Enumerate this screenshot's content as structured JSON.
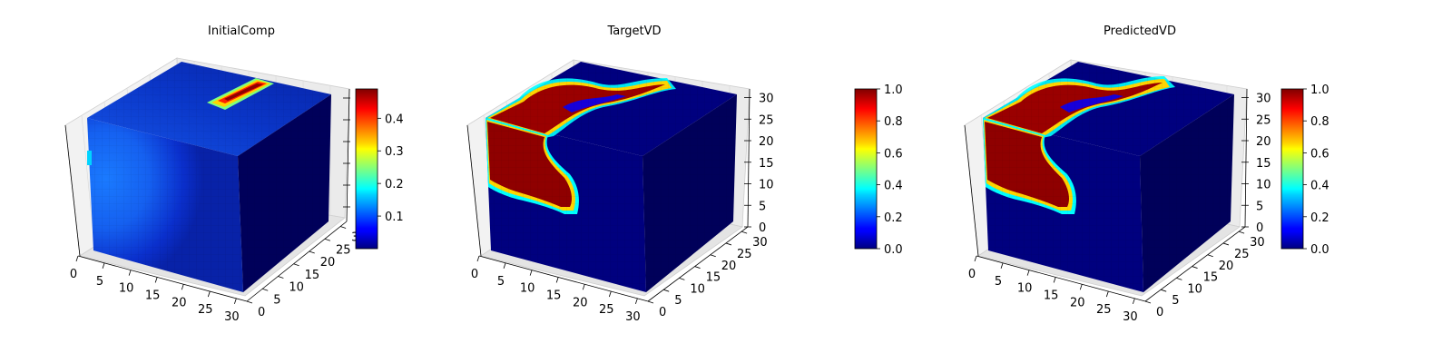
{
  "figure": {
    "panels": [
      {
        "title": "InitialComp"
      },
      {
        "title": "TargetVD"
      },
      {
        "title": "PredictedVD"
      }
    ]
  },
  "chart_data": [
    {
      "type": "voxel-3d",
      "title": "InitialComp",
      "colormap": "jet",
      "axes": {
        "x": {
          "ticks": [
            0,
            5,
            10,
            15,
            20,
            25,
            30
          ],
          "range": [
            0,
            32
          ]
        },
        "y": {
          "ticks": [
            0,
            5,
            10,
            15,
            20,
            25,
            30
          ],
          "range": [
            0,
            32
          ]
        },
        "z": {
          "ticks": [],
          "range": [
            0,
            32
          ]
        }
      },
      "grid": true,
      "colorbar": {
        "range": [
          0.0,
          0.49
        ],
        "ticks": [
          0.1,
          0.2,
          0.3,
          0.4
        ],
        "tick_labels": [
          "0.1",
          "0.2",
          "0.3",
          "0.4"
        ]
      }
    },
    {
      "type": "voxel-3d",
      "title": "TargetVD",
      "colormap": "jet",
      "axes": {
        "x": {
          "ticks": [
            0,
            5,
            10,
            15,
            20,
            25,
            30
          ],
          "range": [
            0,
            32
          ]
        },
        "y": {
          "ticks": [
            0,
            5,
            10,
            15,
            20,
            25,
            30
          ],
          "range": [
            0,
            32
          ]
        },
        "z": {
          "ticks": [
            0,
            5,
            10,
            15,
            20,
            25,
            30
          ],
          "range": [
            0,
            32
          ]
        }
      },
      "grid": true,
      "colorbar": {
        "range": [
          0.0,
          1.0
        ],
        "ticks": [
          0.0,
          0.2,
          0.4,
          0.6,
          0.8,
          1.0
        ],
        "tick_labels": [
          "0.0",
          "0.2",
          "0.4",
          "0.6",
          "0.8",
          "1.0"
        ]
      }
    },
    {
      "type": "voxel-3d",
      "title": "PredictedVD",
      "colormap": "jet",
      "axes": {
        "x": {
          "ticks": [
            0,
            5,
            10,
            15,
            20,
            25,
            30
          ],
          "range": [
            0,
            32
          ]
        },
        "y": {
          "ticks": [
            0,
            5,
            10,
            15,
            20,
            25,
            30
          ],
          "range": [
            0,
            32
          ]
        },
        "z": {
          "ticks": [
            0,
            5,
            10,
            15,
            20,
            25,
            30
          ],
          "range": [
            0,
            32
          ]
        }
      },
      "grid": true,
      "colorbar": {
        "range": [
          0.0,
          1.0
        ],
        "ticks": [
          0.0,
          0.2,
          0.4,
          0.6,
          0.8,
          1.0
        ],
        "tick_labels": [
          "0.0",
          "0.2",
          "0.4",
          "0.6",
          "0.8",
          "1.0"
        ]
      }
    }
  ]
}
